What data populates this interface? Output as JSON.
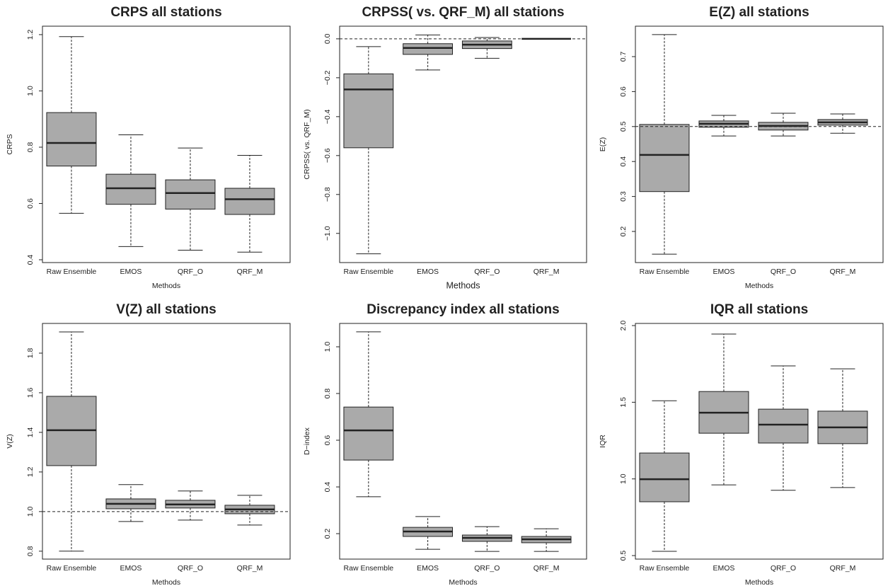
{
  "chart_data": [
    {
      "type": "box",
      "title": "CRPS all stations",
      "xlabel": "Methods",
      "ylabel": "CRPS",
      "color": "#aaaaaa",
      "categories": [
        "Raw Ensemble",
        "EMOS",
        "QRF_O",
        "QRF_M"
      ],
      "whisker_low": [
        0.565,
        0.447,
        0.434,
        0.427
      ],
      "q1": [
        0.733,
        0.597,
        0.58,
        0.561
      ],
      "median": [
        0.815,
        0.654,
        0.637,
        0.615
      ],
      "q3": [
        0.923,
        0.704,
        0.684,
        0.654
      ],
      "whisker_high": [
        1.193,
        0.844,
        0.797,
        0.771
      ],
      "ylim": [
        0.39,
        1.23
      ],
      "yticks": [
        0.4,
        0.6,
        0.8,
        {
          "value": 1,
          "label": "1.0"
        },
        1.2
      ]
    },
    {
      "type": "box",
      "title": "CRPSS( vs. QRF_M) all stations",
      "xlabel": "Methods",
      "ylabel": "CRPSS( vs. QRF_M)",
      "color": "#aaaaaa",
      "categories": [
        "Raw Ensemble",
        "EMOS",
        "QRF_O",
        "QRF_M"
      ],
      "whisker_low": [
        -1.105,
        -0.16,
        -0.1,
        0
      ],
      "q1": [
        -0.56,
        -0.08,
        -0.05,
        0
      ],
      "median": [
        -0.26,
        -0.047,
        -0.03,
        0
      ],
      "q3": [
        -0.18,
        -0.025,
        -0.011,
        0
      ],
      "whisker_high": [
        -0.04,
        0.02,
        0.007,
        0
      ],
      "ylim": [
        -1.15,
        0.065
      ],
      "yticks": [
        {
          "value": -1,
          "label": "−1.0"
        },
        {
          "value": -0.8,
          "label": "−0.8"
        },
        {
          "value": -0.6,
          "label": "−0.6"
        },
        {
          "value": -0.4,
          "label": "−0.4"
        },
        {
          "value": -0.2,
          "label": "−0.2"
        },
        {
          "value": 0,
          "label": "0.0"
        }
      ],
      "hline": 0
    },
    {
      "type": "box",
      "title": "E(Z) all stations",
      "xlabel": "Methods",
      "ylabel": "E(Z)",
      "color": "#aaaaaa",
      "categories": [
        "Raw Ensemble",
        "EMOS",
        "QRF_O",
        "QRF_M"
      ],
      "whisker_low": [
        0.135,
        0.473,
        0.473,
        0.481
      ],
      "q1": [
        0.314,
        0.498,
        0.49,
        0.504
      ],
      "median": [
        0.419,
        0.508,
        0.502,
        0.512
      ],
      "q3": [
        0.506,
        0.516,
        0.512,
        0.52
      ],
      "whisker_high": [
        0.763,
        0.532,
        0.538,
        0.536
      ],
      "ylim": [
        0.111,
        0.787
      ],
      "yticks": [
        0.2,
        0.3,
        0.4,
        0.5,
        0.6,
        0.7
      ],
      "hline": 0.5
    },
    {
      "type": "box",
      "title": "V(Z) all stations",
      "xlabel": "Methods",
      "ylabel": "V(Z)",
      "color": "#aaaaaa",
      "categories": [
        "Raw Ensemble",
        "EMOS",
        "QRF_O",
        "QRF_M"
      ],
      "whisker_low": [
        0.8,
        0.95,
        0.957,
        0.932
      ],
      "q1": [
        1.232,
        1.014,
        1.018,
        0.989
      ],
      "median": [
        1.411,
        1.039,
        1.036,
        1.011
      ],
      "q3": [
        1.582,
        1.064,
        1.057,
        1.032
      ],
      "whisker_high": [
        1.907,
        1.136,
        1.104,
        1.082
      ],
      "ylim": [
        0.76,
        1.95
      ],
      "yticks": [
        0.8,
        {
          "value": 1,
          "label": "1.0"
        },
        1.2,
        1.4,
        1.6,
        1.8
      ],
      "hline": 1
    },
    {
      "type": "box",
      "title": "Discrepancy index all stations",
      "xlabel": "Methods",
      "ylabel": "D−index",
      "color": "#aaaaaa",
      "categories": [
        "Raw Ensemble",
        "EMOS",
        "QRF_O",
        "QRF_M"
      ],
      "whisker_low": [
        0.358,
        0.133,
        0.124,
        0.124
      ],
      "q1": [
        0.515,
        0.188,
        0.167,
        0.161
      ],
      "median": [
        0.642,
        0.209,
        0.182,
        0.176
      ],
      "q3": [
        0.742,
        0.227,
        0.194,
        0.188
      ],
      "whisker_high": [
        1.064,
        0.273,
        0.23,
        0.221
      ],
      "ylim": [
        0.091,
        1.1
      ],
      "yticks": [
        0.2,
        0.4,
        0.6,
        0.8,
        {
          "value": 1,
          "label": "1.0"
        }
      ]
    },
    {
      "type": "box",
      "title": "IQR all stations",
      "xlabel": "Methods",
      "ylabel": "IQR",
      "color": "#aaaaaa",
      "categories": [
        "Raw Ensemble",
        "EMOS",
        "QRF_O",
        "QRF_M"
      ],
      "whisker_low": [
        0.528,
        0.961,
        0.926,
        0.944
      ],
      "q1": [
        0.851,
        1.298,
        1.234,
        1.23
      ],
      "median": [
        0.998,
        1.432,
        1.354,
        1.336
      ],
      "q3": [
        1.169,
        1.57,
        1.455,
        1.442
      ],
      "whisker_high": [
        1.51,
        1.945,
        1.737,
        1.718
      ],
      "ylim": [
        0.477,
        2.014
      ],
      "yticks": [
        0.5,
        {
          "value": 1,
          "label": "1.0"
        },
        1.5,
        {
          "value": 2,
          "label": "2.0"
        }
      ]
    }
  ]
}
